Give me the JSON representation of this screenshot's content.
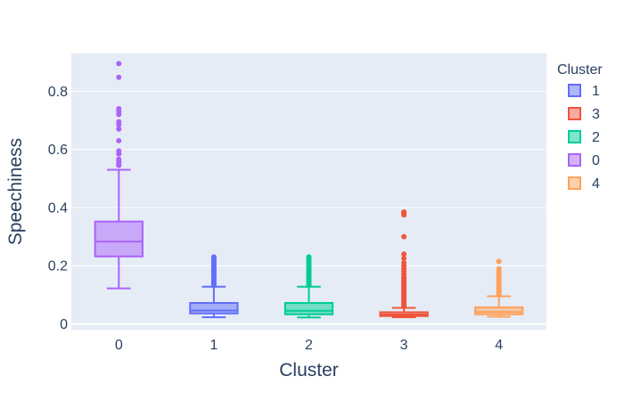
{
  "chart_data": {
    "type": "box",
    "xlabel": "Cluster",
    "ylabel": "Speechiness",
    "yticks": [
      "0",
      "0.2",
      "0.4",
      "0.6",
      "0.8"
    ],
    "ylim": [
      -0.02,
      0.93
    ],
    "grid": true,
    "legend_position": "right",
    "legend_title": "Cluster",
    "categories": [
      "0",
      "1",
      "2",
      "3",
      "4"
    ],
    "series": [
      {
        "name": "1",
        "category": "1",
        "color": "#636efa",
        "whisker_low": 0.023,
        "q1": 0.036,
        "median": 0.046,
        "q3": 0.072,
        "whisker_high": 0.128,
        "outliers": [
          0.132,
          0.136,
          0.14,
          0.145,
          0.15,
          0.155,
          0.16,
          0.165,
          0.17,
          0.175,
          0.18,
          0.185,
          0.19,
          0.195,
          0.2,
          0.205,
          0.21,
          0.215,
          0.22,
          0.225,
          0.23
        ]
      },
      {
        "name": "3",
        "category": "3",
        "color": "#ef553b",
        "whisker_low": 0.023,
        "q1": 0.027,
        "median": 0.032,
        "q3": 0.04,
        "whisker_high": 0.055,
        "outliers": [
          0.06,
          0.065,
          0.07,
          0.075,
          0.08,
          0.085,
          0.09,
          0.095,
          0.1,
          0.105,
          0.11,
          0.115,
          0.12,
          0.125,
          0.13,
          0.135,
          0.14,
          0.145,
          0.15,
          0.155,
          0.16,
          0.17,
          0.18,
          0.19,
          0.2,
          0.21,
          0.225,
          0.24,
          0.3,
          0.375,
          0.38,
          0.385
        ]
      },
      {
        "name": "2",
        "category": "2",
        "color": "#00cc96",
        "whisker_low": 0.022,
        "q1": 0.033,
        "median": 0.045,
        "q3": 0.072,
        "whisker_high": 0.128,
        "outliers": [
          0.132,
          0.136,
          0.14,
          0.145,
          0.15,
          0.155,
          0.16,
          0.165,
          0.17,
          0.175,
          0.18,
          0.185,
          0.19,
          0.195,
          0.2,
          0.205,
          0.21,
          0.215,
          0.22,
          0.225,
          0.23
        ]
      },
      {
        "name": "0",
        "category": "0",
        "color": "#ab63fa",
        "whisker_low": 0.122,
        "q1": 0.232,
        "median": 0.283,
        "q3": 0.352,
        "whisker_high": 0.53,
        "outliers": [
          0.545,
          0.552,
          0.56,
          0.566,
          0.585,
          0.595,
          0.63,
          0.67,
          0.685,
          0.695,
          0.72,
          0.73,
          0.74,
          0.848,
          0.895
        ]
      },
      {
        "name": "4",
        "category": "4",
        "color": "#ffa15a",
        "whisker_low": 0.025,
        "q1": 0.033,
        "median": 0.041,
        "q3": 0.057,
        "whisker_high": 0.095,
        "outliers": [
          0.1,
          0.105,
          0.11,
          0.115,
          0.12,
          0.125,
          0.13,
          0.135,
          0.14,
          0.15,
          0.16,
          0.17,
          0.175,
          0.18,
          0.19,
          0.215
        ]
      }
    ]
  }
}
